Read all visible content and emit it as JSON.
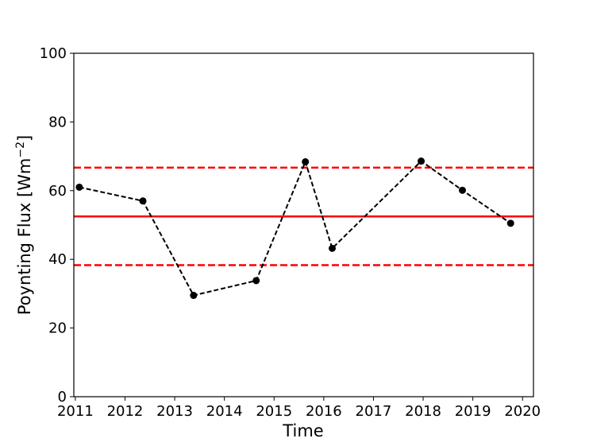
{
  "chart_data": {
    "type": "line",
    "title": "",
    "xlabel": "Time",
    "ylabel": "Poynting Flux [Wm",
    "ylabel_sup": "−2",
    "ylabel_tail": "]",
    "xlim": [
      2010.97,
      2020.22
    ],
    "ylim": [
      0,
      100
    ],
    "xticks": [
      2011,
      2012,
      2013,
      2014,
      2015,
      2016,
      2017,
      2018,
      2019,
      2020
    ],
    "yticks": [
      0,
      20,
      40,
      60,
      80,
      100
    ],
    "grid": false,
    "series": [
      {
        "color": "#000000",
        "line_style": "dashed",
        "marker": "circle",
        "x": [
          2011.08,
          2012.36,
          2013.38,
          2014.64,
          2015.63,
          2016.17,
          2017.96,
          2018.79,
          2019.76
        ],
        "y": [
          61.0,
          57.0,
          29.5,
          33.8,
          68.4,
          43.2,
          68.6,
          60.1,
          50.5
        ]
      }
    ],
    "reference_lines": [
      {
        "y": 52.5,
        "color": "#ff0000",
        "style": "solid"
      },
      {
        "y": 66.7,
        "color": "#ff0000",
        "style": "dashed"
      },
      {
        "y": 38.3,
        "color": "#ff0000",
        "style": "dashed"
      }
    ]
  }
}
